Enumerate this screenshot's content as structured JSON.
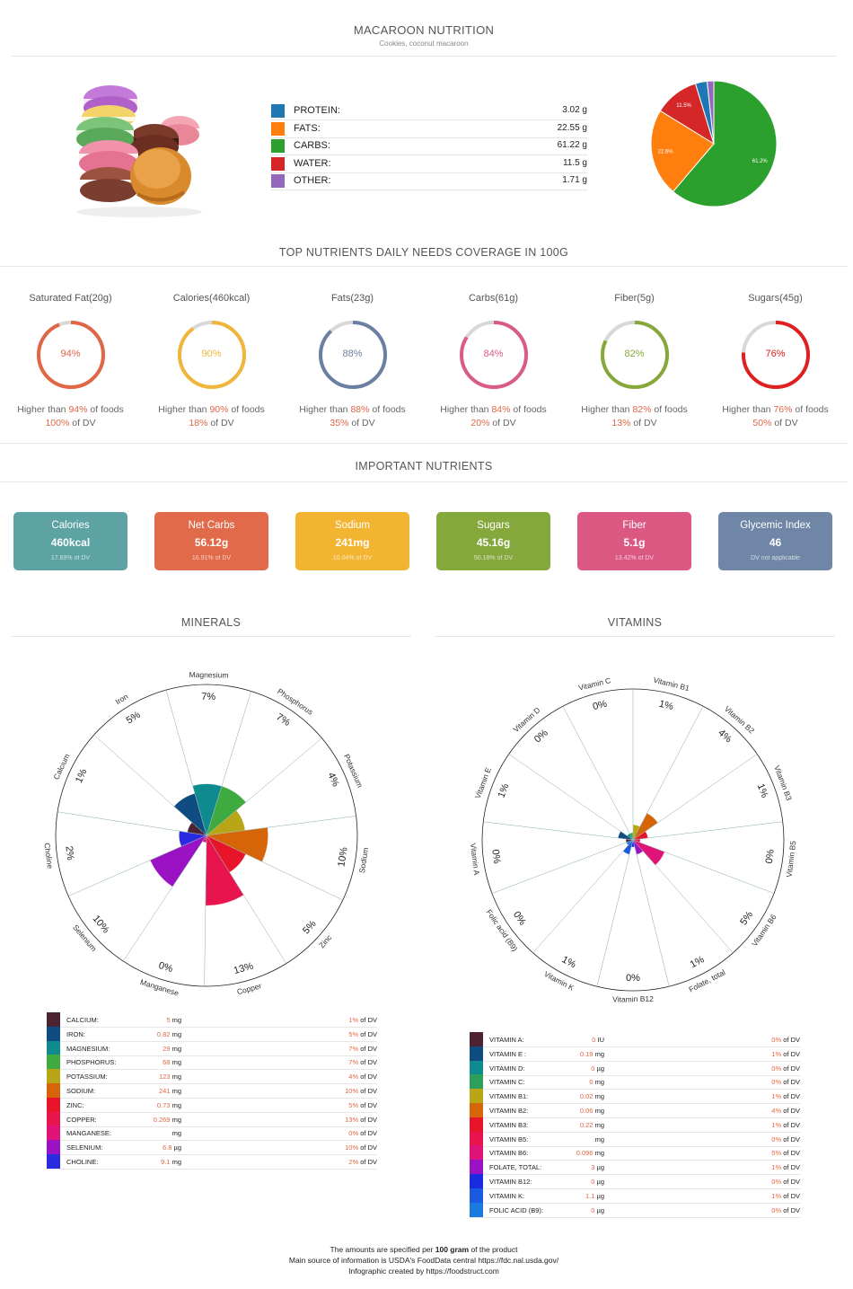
{
  "header": {
    "title": "MACAROON NUTRITION",
    "subtitle": "Cookies, coconut macaroon"
  },
  "macros": [
    {
      "name": "PROTEIN:",
      "value": "3.02 g",
      "color": "#1f77b4"
    },
    {
      "name": "FATS:",
      "value": "22.55 g",
      "color": "#ff7f0e"
    },
    {
      "name": "CARBS:",
      "value": "61.22 g",
      "color": "#2ca02c"
    },
    {
      "name": "WATER:",
      "value": "11.5 g",
      "color": "#d62728"
    },
    {
      "name": "OTHER:",
      "value": "1.71 g",
      "color": "#9467bd"
    }
  ],
  "chart_data": [
    {
      "type": "pie",
      "categories": [
        "Protein",
        "Fats",
        "Carbs",
        "Water",
        "Other"
      ],
      "values": [
        3.02,
        22.55,
        61.22,
        11.5,
        1.71
      ],
      "colors": [
        "#1f77b4",
        "#ff7f0e",
        "#2ca02c",
        "#d62728",
        "#9467bd"
      ],
      "slice_labels": [
        "",
        "22.6%",
        "61.2%",
        "11.5%",
        ""
      ]
    },
    {
      "type": "bar",
      "form": "polar-area",
      "name": "minerals",
      "categories": [
        "Calcium",
        "Iron",
        "Magnesium",
        "Phosphorus",
        "Potassium",
        "Sodium",
        "Zinc",
        "Copper",
        "Manganese",
        "Selenium",
        "Choline"
      ],
      "values": [
        1,
        5,
        7,
        7,
        4,
        10,
        5,
        13,
        0,
        10,
        2
      ],
      "value_labels": [
        "1%",
        "5%",
        "7%",
        "7%",
        "4%",
        "10%",
        "5%",
        "13%",
        "0%",
        "10%",
        "2%"
      ],
      "colors": [
        "#4d2233",
        "#0f4c81",
        "#0f8a8f",
        "#3faa3f",
        "#b8a616",
        "#d6650a",
        "#e8142a",
        "#e8144e",
        "#e01478",
        "#9a12c4",
        "#2a2ae0"
      ]
    },
    {
      "type": "bar",
      "form": "polar-area",
      "name": "vitamins",
      "categories": [
        "Vitamin C",
        "Vitamin B1",
        "Vitamin B2",
        "Vitamin B3",
        "Vitamin B5",
        "Vitamin B6",
        "Folate, total",
        "Vitamin B12",
        "Vitamin K",
        "Folic acid (B9)",
        "Vitamin A",
        "Vitamin E",
        "Vitamin D"
      ],
      "values": [
        0,
        1,
        4,
        1,
        0,
        5,
        1,
        0,
        1,
        0,
        0,
        1,
        0
      ],
      "value_labels": [
        "0%",
        "1%",
        "4%",
        "1%",
        "0%",
        "5%",
        "1%",
        "0%",
        "1%",
        "0%",
        "0%",
        "1%",
        "0%"
      ],
      "colors": [
        "#2ca05a",
        "#b8a616",
        "#d6650a",
        "#e8142a",
        "#e8144e",
        "#e01478",
        "#9a12c4",
        "#1a2ae0",
        "#1a5ae0",
        "#1a7ae0",
        "#4d2233",
        "#0f4c81",
        "#0f8a8f"
      ]
    }
  ],
  "coverage": {
    "title": "TOP NUTRIENTS DAILY NEEDS COVERAGE IN 100G",
    "higher_than": "Higher than",
    "of_foods": "of foods",
    "of_dv": "of DV",
    "items": [
      {
        "label": "Saturated Fat(20g)",
        "percent": "94%",
        "fraction": 0.94,
        "dv": "100%",
        "color": "#e06646"
      },
      {
        "label": "Calories(460kcal)",
        "percent": "90%",
        "fraction": 0.9,
        "dv": "18%",
        "color": "#f0b63c"
      },
      {
        "label": "Fats(23g)",
        "percent": "88%",
        "fraction": 0.88,
        "dv": "35%",
        "color": "#6b7fa3"
      },
      {
        "label": "Carbs(61g)",
        "percent": "84%",
        "fraction": 0.84,
        "dv": "20%",
        "color": "#d95c84"
      },
      {
        "label": "Fiber(5g)",
        "percent": "82%",
        "fraction": 0.82,
        "dv": "13%",
        "color": "#86a83a"
      },
      {
        "label": "Sugars(45g)",
        "percent": "76%",
        "fraction": 0.76,
        "dv": "50%",
        "color": "#e02020"
      }
    ]
  },
  "important": {
    "title": "IMPORTANT NUTRIENTS",
    "cards": [
      {
        "name": "Calories",
        "value": "460kcal",
        "dv": "17.69% of DV",
        "color": "#5da3a3"
      },
      {
        "name": "Net Carbs",
        "value": "56.12g",
        "dv": "16.91% of DV",
        "color": "#e06a4a"
      },
      {
        "name": "Sodium",
        "value": "241mg",
        "dv": "10.04% of DV",
        "color": "#f2b431"
      },
      {
        "name": "Sugars",
        "value": "45.16g",
        "dv": "50.18% of DV",
        "color": "#84a83c"
      },
      {
        "name": "Fiber",
        "value": "5.1g",
        "dv": "13.42% of DV",
        "color": "#db5882"
      },
      {
        "name": "Glycemic Index",
        "value": "46",
        "dv": "DV not applicable",
        "color": "#6f86a6"
      }
    ]
  },
  "minerals": {
    "title": "MINERALS",
    "of_dv": "of DV",
    "rows": [
      {
        "name": "CALCIUM:",
        "amount": "5",
        "unit": "mg",
        "dv": "1%",
        "color": "#4d2233"
      },
      {
        "name": "IRON:",
        "amount": "0.82",
        "unit": "mg",
        "dv": "5%",
        "color": "#0f4c81"
      },
      {
        "name": "MAGNESIUM:",
        "amount": "29",
        "unit": "mg",
        "dv": "7%",
        "color": "#0f8a8f"
      },
      {
        "name": "PHOSPHORUS:",
        "amount": "68",
        "unit": "mg",
        "dv": "7%",
        "color": "#3faa3f"
      },
      {
        "name": "POTASSIUM:",
        "amount": "123",
        "unit": "mg",
        "dv": "4%",
        "color": "#b8a616"
      },
      {
        "name": "SODIUM:",
        "amount": "241",
        "unit": "mg",
        "dv": "10%",
        "color": "#d6650a"
      },
      {
        "name": "ZINC:",
        "amount": "0.73",
        "unit": "mg",
        "dv": "5%",
        "color": "#e8142a"
      },
      {
        "name": "COPPER:",
        "amount": "0.269",
        "unit": "mg",
        "dv": "13%",
        "color": "#e8144e"
      },
      {
        "name": "MANGANESE:",
        "amount": "",
        "unit": "mg",
        "dv": "0%",
        "color": "#e01478"
      },
      {
        "name": "SELENIUM:",
        "amount": "6.8",
        "unit": "µg",
        "dv": "10%",
        "color": "#9a12c4"
      },
      {
        "name": "CHOLINE:",
        "amount": "9.1",
        "unit": "mg",
        "dv": "2%",
        "color": "#2a2ae0"
      }
    ]
  },
  "vitamins": {
    "title": "VITAMINS",
    "of_dv": "of DV",
    "rows": [
      {
        "name": "VITAMIN A:",
        "amount": "0",
        "unit": "IU",
        "dv": "0%",
        "color": "#4d2233"
      },
      {
        "name": "VITAMIN E :",
        "amount": "0.19",
        "unit": "mg",
        "dv": "1%",
        "color": "#0f4c81"
      },
      {
        "name": "VITAMIN D:",
        "amount": "0",
        "unit": "µg",
        "dv": "0%",
        "color": "#0f8a8f"
      },
      {
        "name": "VITAMIN C:",
        "amount": "0",
        "unit": "mg",
        "dv": "0%",
        "color": "#2ca05a"
      },
      {
        "name": "VITAMIN B1:",
        "amount": "0.02",
        "unit": "mg",
        "dv": "1%",
        "color": "#b8a616"
      },
      {
        "name": "VITAMIN B2:",
        "amount": "0.06",
        "unit": "mg",
        "dv": "4%",
        "color": "#d6650a"
      },
      {
        "name": "VITAMIN B3:",
        "amount": "0.22",
        "unit": "mg",
        "dv": "1%",
        "color": "#e8142a"
      },
      {
        "name": "VITAMIN B5:",
        "amount": "",
        "unit": "mg",
        "dv": "0%",
        "color": "#e8144e"
      },
      {
        "name": "VITAMIN B6:",
        "amount": "0.096",
        "unit": "mg",
        "dv": "5%",
        "color": "#e01478"
      },
      {
        "name": "FOLATE, TOTAL:",
        "amount": "3",
        "unit": "µg",
        "dv": "1%",
        "color": "#9a12c4"
      },
      {
        "name": "VITAMIN B12:",
        "amount": "0",
        "unit": "µg",
        "dv": "0%",
        "color": "#1a2ae0"
      },
      {
        "name": "VITAMIN K:",
        "amount": "1.1",
        "unit": "µg",
        "dv": "1%",
        "color": "#1a5ae0"
      },
      {
        "name": "FOLIC ACID (B9):",
        "amount": "0",
        "unit": "µg",
        "dv": "0%",
        "color": "#1a7ae0"
      }
    ]
  },
  "footer": {
    "line1_pre": "The amounts are specified per",
    "line1_bold": "100 gram",
    "line1_post": "of the product",
    "line2": "Main source of information is USDA's FoodData central https://fdc.nal.usda.gov/",
    "line3": "Infographic created by https://foodstruct.com"
  }
}
